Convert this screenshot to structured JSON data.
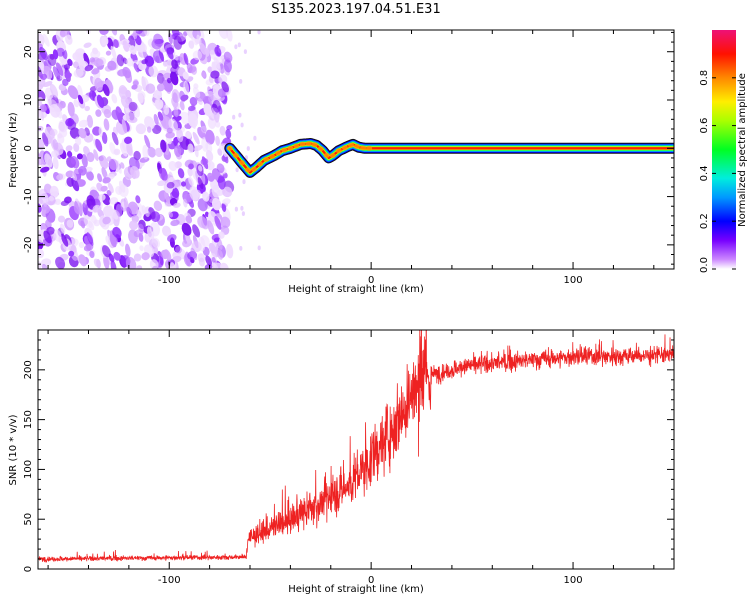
{
  "title": "S135.2023.197.04.51.E31",
  "chart_data": [
    {
      "type": "heatmap",
      "xlabel": "Height of straight line (km)",
      "ylabel": "Frequency (Hz)",
      "xlim": [
        -165,
        150
      ],
      "ylim": [
        -25,
        24.5
      ],
      "x_ticks": [
        "-100",
        "0",
        "100"
      ],
      "y_ticks": [
        "20",
        "10",
        "0",
        "-10",
        "-20"
      ],
      "colorbar": {
        "label": "Normalized spectral amplitude",
        "range": [
          0,
          1
        ],
        "ticks": [
          "0.0",
          "0.2",
          "0.4",
          "0.6",
          "0.8"
        ]
      },
      "noise_region_x": [
        -165,
        -72
      ],
      "ridge": {
        "x": [
          -70,
          -68,
          -65,
          -62,
          -60,
          -57,
          -53,
          -48,
          -44,
          -40,
          -35,
          -30,
          -27,
          -24,
          -21,
          -19,
          -16,
          -12,
          -9,
          -6,
          -3,
          0,
          150
        ],
        "y": [
          0,
          -1,
          -2.5,
          -4,
          -5,
          -4,
          -2.5,
          -1.5,
          -0.5,
          0,
          0.8,
          1,
          0.6,
          -0.5,
          -2,
          -1.5,
          -0.5,
          0.3,
          0.8,
          0.2,
          0,
          0,
          0
        ]
      }
    },
    {
      "type": "line",
      "xlabel": "Height of straight line (km)",
      "ylabel": "SNR (10 * v/v)",
      "xlim": [
        -165,
        150
      ],
      "ylim": [
        0,
        240
      ],
      "x_ticks": [
        "-100",
        "0",
        "100"
      ],
      "y_ticks": [
        "0",
        "50",
        "100",
        "150",
        "200"
      ],
      "color": "#ee2222",
      "trend": {
        "x": [
          -165,
          -62,
          -61,
          -50,
          -30,
          -10,
          0,
          10,
          20,
          30,
          50,
          80,
          100,
          150
        ],
        "y": [
          10,
          12,
          30,
          40,
          60,
          85,
          110,
          140,
          175,
          195,
          205,
          210,
          213,
          215
        ]
      }
    }
  ]
}
